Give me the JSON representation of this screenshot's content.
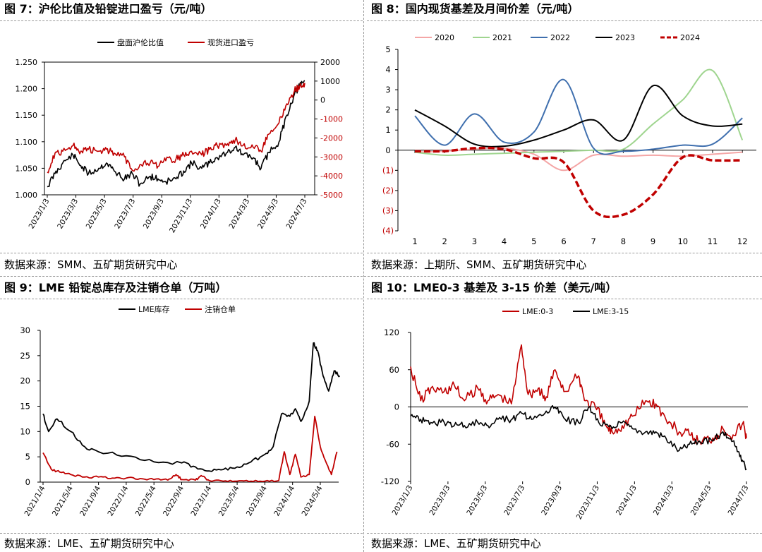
{
  "panels": [
    {
      "title": "图 7：沪伦比值及铅锭进口盈亏（元/吨）",
      "source": "数据来源：SMM、五矿期货研究中心"
    },
    {
      "title": "图 8：国内现货基差及月间价差（元/吨）",
      "source": "数据来源：上期所、SMM、五矿期货研究中心"
    },
    {
      "title": "图 9：LME 铅锭总库存及注销仓单（万吨）",
      "source": "数据来源：LME、五矿期货研究中心"
    },
    {
      "title": "图 10：LME0-3 基差及 3-15 价差（美元/吨）",
      "source": "数据来源：LME、五矿期货研究中心"
    }
  ],
  "chart_data": [
    {
      "type": "line",
      "legend": [
        "盘面沪伦比值",
        "现货进口盈亏"
      ],
      "colors": [
        "#000000",
        "#c00000"
      ],
      "x_ticks": [
        "2023/1/3",
        "2023/3/3",
        "2023/5/3",
        "2023/7/3",
        "2023/9/3",
        "2023/11/3",
        "2024/1/3",
        "2024/3/3",
        "2024/5/3",
        "2024/7/3"
      ],
      "y_left": {
        "ticks": [
          "1.250",
          "1.200",
          "1.150",
          "1.100",
          "1.050",
          "1.000"
        ],
        "range": [
          1.0,
          1.25
        ]
      },
      "y_right": {
        "ticks": [
          "2000",
          "1000",
          "0",
          "-1000",
          "-2000",
          "-3000",
          "-4000",
          "-5000"
        ],
        "range": [
          -5000,
          2000
        ]
      },
      "series": [
        {
          "name": "盘面沪伦比值",
          "axis": "left",
          "points": [
            [
              0,
              1.015
            ],
            [
              0.3,
              1.04
            ],
            [
              0.6,
              1.06
            ],
            [
              1.0,
              1.075
            ],
            [
              1.3,
              1.055
            ],
            [
              1.6,
              1.04
            ],
            [
              2.0,
              1.05
            ],
            [
              2.3,
              1.06
            ],
            [
              2.6,
              1.045
            ],
            [
              3.0,
              1.03
            ],
            [
              3.3,
              1.04
            ],
            [
              3.6,
              1.02
            ],
            [
              4.0,
              1.035
            ],
            [
              4.3,
              1.03
            ],
            [
              4.6,
              1.025
            ],
            [
              5.0,
              1.03
            ],
            [
              5.3,
              1.045
            ],
            [
              5.6,
              1.06
            ],
            [
              6.0,
              1.05
            ],
            [
              6.3,
              1.06
            ],
            [
              6.6,
              1.07
            ],
            [
              7.0,
              1.08
            ],
            [
              7.3,
              1.09
            ],
            [
              7.6,
              1.075
            ],
            [
              8.0,
              1.07
            ],
            [
              8.3,
              1.05
            ],
            [
              8.6,
              1.08
            ],
            [
              9.0,
              1.1
            ],
            [
              9.3,
              1.15
            ],
            [
              9.6,
              1.19
            ],
            [
              9.8,
              1.205
            ],
            [
              10.0,
              1.215
            ]
          ]
        },
        {
          "name": "现货进口盈亏",
          "axis": "right",
          "points": [
            [
              0,
              -3800
            ],
            [
              0.3,
              -2800
            ],
            [
              0.6,
              -2700
            ],
            [
              1.0,
              -2400
            ],
            [
              1.3,
              -2700
            ],
            [
              1.6,
              -2600
            ],
            [
              2.0,
              -2700
            ],
            [
              2.3,
              -2600
            ],
            [
              2.6,
              -2800
            ],
            [
              3.0,
              -3000
            ],
            [
              3.3,
              -3700
            ],
            [
              3.6,
              -3400
            ],
            [
              4.0,
              -3300
            ],
            [
              4.3,
              -3500
            ],
            [
              4.6,
              -3200
            ],
            [
              5.0,
              -3100
            ],
            [
              5.3,
              -2900
            ],
            [
              5.6,
              -2700
            ],
            [
              6.0,
              -2900
            ],
            [
              6.3,
              -2600
            ],
            [
              6.6,
              -2400
            ],
            [
              7.0,
              -2300
            ],
            [
              7.3,
              -2100
            ],
            [
              7.6,
              -2400
            ],
            [
              8.0,
              -2500
            ],
            [
              8.3,
              -2700
            ],
            [
              8.6,
              -1800
            ],
            [
              9.0,
              -1200
            ],
            [
              9.3,
              -200
            ],
            [
              9.6,
              500
            ],
            [
              9.8,
              700
            ],
            [
              10.0,
              900
            ]
          ]
        }
      ]
    },
    {
      "type": "line",
      "legend": [
        "2020",
        "2021",
        "2022",
        "2023",
        "2024"
      ],
      "colors": [
        "#f4a6a6",
        "#9fd58f",
        "#3f6fae",
        "#000000",
        "#c00000"
      ],
      "categories": [
        "1",
        "2",
        "3",
        "4",
        "5",
        "6",
        "7",
        "8",
        "9",
        "10",
        "11",
        "12"
      ],
      "y_ticks": [
        "5",
        "4",
        "3",
        "2",
        "1",
        "0",
        "(1)",
        "(2)",
        "(3)",
        "(4)"
      ],
      "ylim": [
        -4,
        5
      ],
      "series": [
        {
          "name": "2020",
          "values": [
            -0.1,
            -0.05,
            0.05,
            0.1,
            -0.2,
            -1.0,
            -0.25,
            -0.3,
            -0.25,
            -0.3,
            -0.2,
            -0.1
          ]
        },
        {
          "name": "2021",
          "values": [
            -0.1,
            -0.25,
            -0.2,
            -0.15,
            -0.1,
            -0.05,
            0.0,
            0.05,
            1.3,
            2.5,
            3.95,
            0.5
          ]
        },
        {
          "name": "2022",
          "values": [
            1.7,
            0.25,
            1.8,
            0.4,
            0.9,
            3.5,
            0.1,
            -0.05,
            0.05,
            0.25,
            0.3,
            1.6
          ]
        },
        {
          "name": "2023",
          "values": [
            2.0,
            1.2,
            0.3,
            0.2,
            0.5,
            1.0,
            1.5,
            0.5,
            3.2,
            1.7,
            1.2,
            1.3
          ]
        },
        {
          "name": "2024",
          "values": [
            -0.05,
            -0.05,
            0.1,
            0.05,
            -0.4,
            -0.6,
            -3.0,
            -3.2,
            -2.2,
            -0.35,
            -0.5,
            -0.5
          ]
        }
      ]
    },
    {
      "type": "line",
      "legend": [
        "LME库存",
        "注销仓单"
      ],
      "colors": [
        "#000000",
        "#c00000"
      ],
      "x_ticks": [
        "2021/1/4",
        "2021/5/4",
        "2021/9/4",
        "2022/1/4",
        "2022/5/4",
        "2022/9/4",
        "2023/1/4",
        "2023/5/4",
        "2023/9/4",
        "2024/1/4",
        "2024/5/4"
      ],
      "y_ticks": [
        "30",
        "25",
        "20",
        "15",
        "10",
        "5",
        "0"
      ],
      "ylim": [
        0,
        30
      ],
      "series": [
        {
          "name": "LME库存",
          "points": [
            [
              0,
              13.5
            ],
            [
              0.2,
              10
            ],
            [
              0.5,
              12.5
            ],
            [
              1.0,
              10
            ],
            [
              1.5,
              7
            ],
            [
              2.0,
              6
            ],
            [
              3.0,
              5.2
            ],
            [
              4.0,
              4
            ],
            [
              5.0,
              3.8
            ],
            [
              5.5,
              3
            ],
            [
              6.0,
              2.2
            ],
            [
              6.5,
              2.5
            ],
            [
              7.0,
              3
            ],
            [
              7.5,
              4
            ],
            [
              8.0,
              5.5
            ],
            [
              8.3,
              7
            ],
            [
              8.6,
              13.5
            ],
            [
              8.9,
              13
            ],
            [
              9.1,
              14.5
            ],
            [
              9.3,
              12
            ],
            [
              9.6,
              16
            ],
            [
              9.75,
              27.5
            ],
            [
              9.9,
              26
            ],
            [
              10.1,
              21
            ],
            [
              10.3,
              18
            ],
            [
              10.5,
              22
            ],
            [
              10.7,
              21
            ]
          ]
        },
        {
          "name": "注销仓单",
          "points": [
            [
              0,
              5.8
            ],
            [
              0.3,
              2.5
            ],
            [
              0.6,
              2
            ],
            [
              1.0,
              1.5
            ],
            [
              1.5,
              1
            ],
            [
              2.0,
              1
            ],
            [
              2.5,
              0.8
            ],
            [
              3.0,
              0.8
            ],
            [
              3.5,
              0.7
            ],
            [
              4.0,
              0.5
            ],
            [
              4.5,
              0.4
            ],
            [
              4.8,
              1.5
            ],
            [
              5.0,
              0.5
            ],
            [
              5.5,
              0.4
            ],
            [
              5.7,
              1.3
            ],
            [
              6.0,
              0.3
            ],
            [
              6.5,
              0.2
            ],
            [
              7.0,
              0.2
            ],
            [
              7.5,
              0.2
            ],
            [
              8.0,
              0.2
            ],
            [
              8.5,
              0.3
            ],
            [
              8.7,
              6
            ],
            [
              8.9,
              1.5
            ],
            [
              9.1,
              5.5
            ],
            [
              9.3,
              1
            ],
            [
              9.6,
              1.5
            ],
            [
              9.8,
              13
            ],
            [
              10.0,
              7
            ],
            [
              10.2,
              4
            ],
            [
              10.4,
              1.5
            ],
            [
              10.6,
              6
            ]
          ]
        }
      ]
    },
    {
      "type": "line",
      "legend": [
        "LME:0-3",
        "LME:3-15"
      ],
      "colors": [
        "#c00000",
        "#000000"
      ],
      "x_ticks": [
        "2023/1/3",
        "2023/3/3",
        "2023/5/3",
        "2023/7/3",
        "2023/9/3",
        "2023/11/3",
        "2024/1/3",
        "2024/3/3",
        "2024/5/3",
        "2024/7/3"
      ],
      "y_ticks": [
        "120",
        "60",
        "0",
        "-60",
        "-120"
      ],
      "ylim": [
        -120,
        120
      ],
      "series": [
        {
          "name": "LME:0-3",
          "points": [
            [
              0,
              65
            ],
            [
              0.3,
              10
            ],
            [
              0.6,
              30
            ],
            [
              1.0,
              25
            ],
            [
              1.3,
              35
            ],
            [
              1.6,
              10
            ],
            [
              2.0,
              30
            ],
            [
              2.3,
              10
            ],
            [
              2.6,
              20
            ],
            [
              3.0,
              5
            ],
            [
              3.3,
              100
            ],
            [
              3.5,
              20
            ],
            [
              3.8,
              30
            ],
            [
              4.0,
              10
            ],
            [
              4.3,
              60
            ],
            [
              4.6,
              25
            ],
            [
              5.0,
              50
            ],
            [
              5.2,
              10
            ],
            [
              5.5,
              0
            ],
            [
              5.8,
              -30
            ],
            [
              6.0,
              -40
            ],
            [
              6.3,
              -30
            ],
            [
              6.6,
              -15
            ],
            [
              7.0,
              10
            ],
            [
              7.3,
              5
            ],
            [
              7.6,
              -20
            ],
            [
              8.0,
              -40
            ],
            [
              8.3,
              -45
            ],
            [
              8.6,
              -55
            ],
            [
              9.0,
              -50
            ],
            [
              9.3,
              -35
            ],
            [
              9.6,
              -45
            ],
            [
              9.9,
              -25
            ],
            [
              10.0,
              -50
            ]
          ]
        },
        {
          "name": "LME:3-15",
          "points": [
            [
              0,
              -15
            ],
            [
              0.3,
              -20
            ],
            [
              0.6,
              -25
            ],
            [
              1.0,
              -25
            ],
            [
              1.3,
              -30
            ],
            [
              1.6,
              -30
            ],
            [
              2.0,
              -25
            ],
            [
              2.3,
              -30
            ],
            [
              2.6,
              -20
            ],
            [
              3.0,
              -20
            ],
            [
              3.3,
              -10
            ],
            [
              3.6,
              -20
            ],
            [
              4.0,
              -10
            ],
            [
              4.3,
              0
            ],
            [
              4.6,
              -20
            ],
            [
              5.0,
              -25
            ],
            [
              5.3,
              0
            ],
            [
              5.6,
              -25
            ],
            [
              6.0,
              -35
            ],
            [
              6.3,
              -25
            ],
            [
              6.6,
              -35
            ],
            [
              7.0,
              -40
            ],
            [
              7.3,
              -40
            ],
            [
              7.6,
              -50
            ],
            [
              8.0,
              -70
            ],
            [
              8.3,
              -60
            ],
            [
              8.6,
              -55
            ],
            [
              9.0,
              -55
            ],
            [
              9.3,
              -40
            ],
            [
              9.6,
              -55
            ],
            [
              9.8,
              -80
            ],
            [
              10.0,
              -100
            ]
          ]
        }
      ]
    }
  ]
}
